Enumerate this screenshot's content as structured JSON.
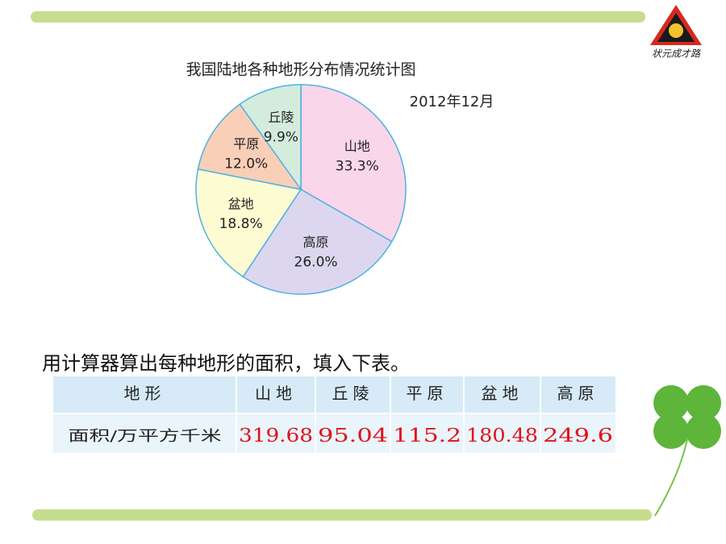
{
  "chart_data": {
    "type": "pie",
    "title": "我国陆地各种地形分布情况统计图",
    "subtitle": "2012年12月",
    "categories": [
      "山地",
      "高原",
      "盆地",
      "平原",
      "丘陵"
    ],
    "values": [
      33.3,
      26.0,
      18.8,
      12.0,
      9.9
    ],
    "value_labels": [
      "33.3%",
      "26.0%",
      "18.8%",
      "12.0%",
      "9.9%"
    ],
    "colors": [
      "#fad6ea",
      "#dcd7ef",
      "#fdfbd2",
      "#f9cfb7",
      "#d3ecdc"
    ]
  },
  "instruction": "用计算器算出每种地形的面积，填入下表。",
  "table": {
    "header": [
      "地形",
      "山地",
      "丘陵",
      "平原",
      "盆地",
      "高原"
    ],
    "rows": [
      [
        "面积/万平方千米",
        "319.68",
        "95.04",
        "115.2",
        "180.48",
        "249.6"
      ]
    ]
  },
  "logo": {
    "text": "状元成才路"
  }
}
